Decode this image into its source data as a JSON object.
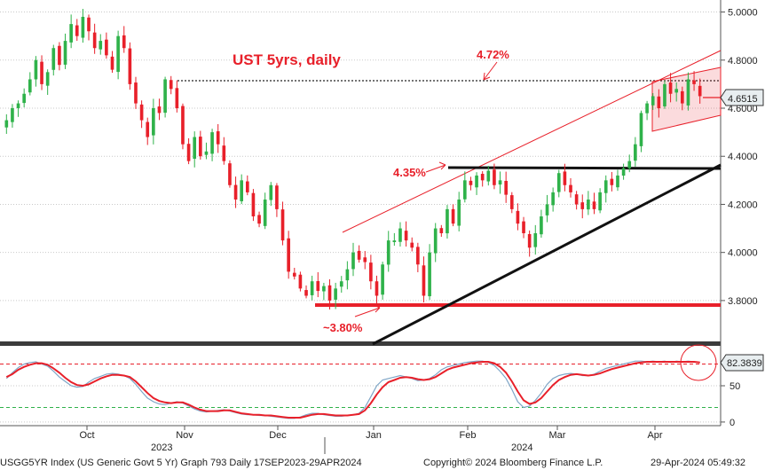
{
  "chart_data": [
    {
      "type": "candlestick",
      "title": "UST 5yrs, daily",
      "y_axis_position": "right",
      "ylim": [
        3.63,
        5.05
      ],
      "y_ticks": [
        "5.0000",
        "4.8000",
        "4.6000",
        "4.4000",
        "4.2000",
        "4.0000",
        "3.8000"
      ],
      "last_value_label": "4.6515",
      "up_color": "#2fb24a",
      "down_color": "#e8202a",
      "x_labels": [
        "Oct",
        "Nov",
        "Dec",
        "Jan",
        "Feb",
        "Mar",
        "Apr"
      ],
      "x_year_labels": [
        "2023",
        "2024"
      ],
      "closes": [
        4.55,
        4.6,
        4.62,
        4.66,
        4.72,
        4.8,
        4.7,
        4.75,
        4.85,
        4.78,
        4.88,
        4.95,
        4.9,
        4.98,
        4.92,
        4.85,
        4.88,
        4.82,
        4.76,
        4.9,
        4.85,
        4.7,
        4.62,
        4.55,
        4.48,
        4.6,
        4.58,
        4.72,
        4.68,
        4.6,
        4.45,
        4.38,
        4.48,
        4.4,
        4.42,
        4.5,
        4.45,
        4.38,
        4.28,
        4.22,
        4.3,
        4.25,
        4.15,
        4.12,
        4.22,
        4.28,
        4.18,
        4.05,
        3.92,
        3.9,
        3.85,
        3.82,
        3.88,
        3.84,
        3.86,
        3.8,
        3.85,
        3.88,
        3.93,
        4.0,
        3.97,
        3.96,
        3.88,
        3.82,
        3.95,
        4.05,
        4.05,
        4.1,
        4.05,
        4.02,
        3.95,
        3.82,
        4.0,
        4.1,
        4.08,
        4.18,
        4.12,
        4.22,
        4.3,
        4.28,
        4.32,
        4.3,
        4.34,
        4.28,
        4.3,
        4.24,
        4.18,
        4.12,
        4.08,
        4.02,
        4.08,
        4.15,
        4.2,
        4.25,
        4.33,
        4.28,
        4.25,
        4.2,
        4.18,
        4.22,
        4.18,
        4.25,
        4.3,
        4.28,
        4.32,
        4.35,
        4.38,
        4.45,
        4.58,
        4.62,
        4.65,
        4.6,
        4.7,
        4.66,
        4.68,
        4.62,
        4.72,
        4.7,
        4.65
      ],
      "annotations": [
        "4.72%",
        "4.35%",
        "~3.80%"
      ]
    },
    {
      "type": "line",
      "ylim": [
        -5,
        105
      ],
      "y_ticks": [
        "50",
        "0"
      ],
      "last_value_label": "82.3839",
      "reference_lines": [
        80,
        20
      ],
      "series_colors": [
        "#e8202a",
        "#7fa6c7"
      ],
      "fast": [
        60,
        68,
        75,
        80,
        82,
        83,
        80,
        77,
        70,
        62,
        56,
        50,
        48,
        49,
        55,
        60,
        63,
        66,
        67,
        66,
        64,
        60,
        52,
        42,
        33,
        28,
        25,
        24,
        26,
        28,
        26,
        22,
        18,
        15,
        14,
        15,
        16,
        17,
        15,
        13,
        11,
        10,
        10,
        9,
        9,
        8,
        7,
        6,
        5,
        5,
        7,
        10,
        12,
        12,
        10,
        9,
        8,
        8,
        9,
        10,
        12,
        20,
        35,
        50,
        58,
        60,
        62,
        64,
        62,
        60,
        57,
        58,
        60,
        65,
        72,
        76,
        78,
        80,
        82,
        83,
        84,
        84,
        82,
        78,
        70,
        60,
        45,
        28,
        20,
        22,
        30,
        40,
        52,
        60,
        64,
        66,
        67,
        66,
        64,
        64,
        66,
        70,
        74,
        76,
        78,
        80,
        82,
        84,
        84,
        83,
        84,
        83,
        84,
        82,
        84,
        83,
        84,
        83,
        82
      ],
      "slow": [
        62,
        66,
        72,
        76,
        79,
        81,
        81,
        79,
        74,
        68,
        61,
        55,
        51,
        50,
        52,
        56,
        60,
        63,
        65,
        65,
        64,
        62,
        56,
        48,
        40,
        33,
        29,
        27,
        26,
        27,
        27,
        24,
        20,
        17,
        15,
        15,
        15,
        16,
        16,
        14,
        12,
        11,
        10,
        10,
        9,
        9,
        8,
        7,
        6,
        6,
        6,
        8,
        10,
        11,
        11,
        10,
        9,
        9,
        9,
        10,
        11,
        16,
        26,
        38,
        48,
        55,
        58,
        61,
        62,
        61,
        59,
        58,
        59,
        62,
        67,
        72,
        75,
        77,
        79,
        81,
        82,
        83,
        83,
        81,
        76,
        68,
        56,
        42,
        30,
        25,
        27,
        33,
        42,
        51,
        58,
        62,
        65,
        66,
        65,
        64,
        65,
        67,
        70,
        73,
        75,
        77,
        79,
        81,
        82,
        83,
        83,
        83,
        83,
        83,
        83,
        83,
        83,
        83,
        82
      ]
    }
  ],
  "footer": {
    "left": "USGG5YR Index (US Generic Govt 5 Yr) Graph 793  Daily 17SEP2023-29APR2024",
    "center": "Copyright© 2024 Bloomberg Finance L.P.",
    "right": "29-Apr-2024 05:49:32"
  }
}
